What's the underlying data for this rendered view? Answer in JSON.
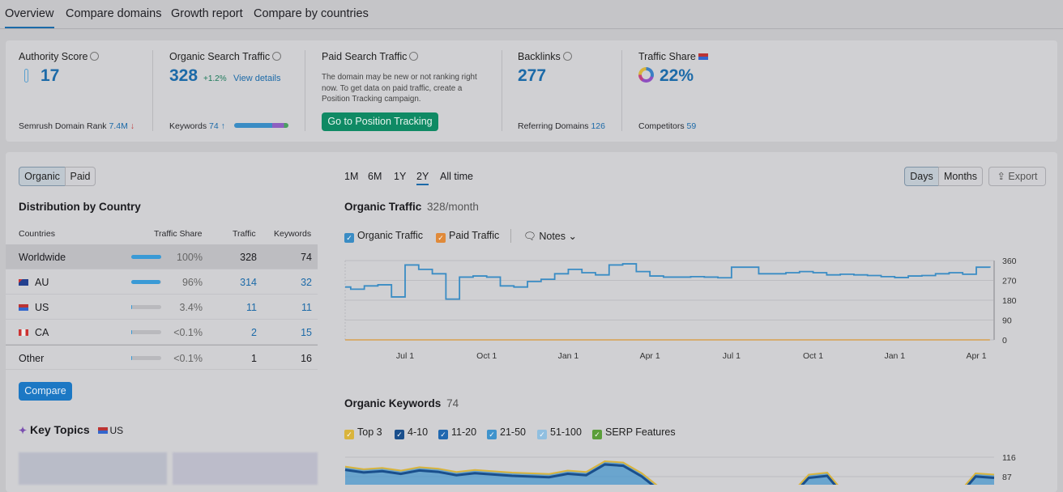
{
  "tabs": [
    {
      "label": "Overview",
      "active": true
    },
    {
      "label": "Compare domains"
    },
    {
      "label": "Growth report"
    },
    {
      "label": "Compare by countries"
    }
  ],
  "metrics": {
    "authority": {
      "label": "Authority Score",
      "value": "17",
      "footer_label": "Semrush Domain Rank",
      "footer_value": "7.4M",
      "trend": "down"
    },
    "organic": {
      "label": "Organic Search Traffic",
      "value": "328",
      "change": "+1.2%",
      "link": "View details",
      "footer_label": "Keywords",
      "footer_value": "74",
      "trend": "up"
    },
    "paid": {
      "label": "Paid Search Traffic",
      "message": "The domain may be new or not ranking right now. To get data on paid traffic, create a Position Tracking campaign.",
      "button": "Go to Position Tracking"
    },
    "backlinks": {
      "label": "Backlinks",
      "value": "277",
      "footer_label": "Referring Domains",
      "footer_value": "126"
    },
    "share": {
      "label": "Traffic Share",
      "value": "22%",
      "footer_label": "Competitors",
      "footer_value": "59"
    }
  },
  "toggle": {
    "organic": "Organic",
    "paid": "Paid"
  },
  "distribution": {
    "title": "Distribution by Country",
    "headers": [
      "Countries",
      "Traffic Share",
      "Traffic",
      "Keywords"
    ],
    "rows": [
      {
        "country": "Worldwide",
        "share": "100%",
        "share_pct": 100,
        "traffic": "328",
        "keywords": "74"
      },
      {
        "country": "AU",
        "share": "96%",
        "share_pct": 96,
        "traffic": "314",
        "keywords": "32",
        "flag": "au"
      },
      {
        "country": "US",
        "share": "3.4%",
        "share_pct": 3.4,
        "traffic": "11",
        "keywords": "11",
        "flag": "us"
      },
      {
        "country": "CA",
        "share": "<0.1%",
        "share_pct": 0.1,
        "traffic": "2",
        "keywords": "15",
        "flag": "ca"
      },
      {
        "country": "Other",
        "share": "<0.1%",
        "share_pct": 0.1,
        "traffic": "1",
        "keywords": "16"
      }
    ],
    "compare": "Compare"
  },
  "key_topics": {
    "title": "Key Topics",
    "country": "US"
  },
  "ranges": [
    "1M",
    "6M",
    "1Y",
    "2Y",
    "All time"
  ],
  "active_range": "2Y",
  "granularity": {
    "days": "Days",
    "months": "Months",
    "export": "Export"
  },
  "traffic_chart": {
    "title": "Organic Traffic",
    "subtitle": "328/month",
    "legend": [
      "Organic Traffic",
      "Paid Traffic"
    ],
    "notes": "Notes"
  },
  "keywords_chart": {
    "title": "Organic Keywords",
    "count": "74",
    "legend": [
      {
        "label": "Top 3",
        "color": "#d9b43c"
      },
      {
        "label": "4-10",
        "color": "#1a4f8c"
      },
      {
        "label": "11-20",
        "color": "#2068b0"
      },
      {
        "label": "21-50",
        "color": "#3f93cc"
      },
      {
        "label": "51-100",
        "color": "#90bfe0"
      },
      {
        "label": "SERP Features",
        "color": "#5a9e3a"
      }
    ]
  },
  "colors": {
    "accent": "#1c6aa8",
    "green": "#0f8a64",
    "organic": "#3a8cc4",
    "paid": "#e08a3a"
  },
  "chart_data": [
    {
      "type": "line",
      "series": [
        {
          "name": "Organic Traffic",
          "values": [
            240,
            230,
            245,
            250,
            195,
            340,
            320,
            300,
            185,
            285,
            290,
            285,
            245,
            240,
            265,
            275,
            300,
            320,
            305,
            295,
            340,
            345,
            310,
            290,
            285,
            285,
            287,
            285,
            282,
            330,
            330,
            300,
            300,
            305,
            310,
            305,
            295,
            298,
            295,
            292,
            287,
            283,
            290,
            292,
            300,
            305,
            298,
            330,
            328
          ]
        },
        {
          "name": "Paid Traffic",
          "values": [
            0,
            0,
            0,
            0,
            0,
            0,
            0,
            0,
            0,
            0,
            0,
            0,
            0,
            0,
            0,
            0,
            0,
            0,
            0,
            0,
            0,
            0,
            0,
            0,
            0,
            0,
            0,
            0,
            0,
            0,
            0,
            0,
            0,
            0,
            0,
            0,
            0,
            0,
            0,
            0,
            0,
            0,
            0,
            0,
            0,
            0,
            0,
            0,
            0
          ]
        }
      ],
      "x_ticks": [
        "Jul 1",
        "Oct 1",
        "Jan 1",
        "Apr 1",
        "Jul 1",
        "Oct 1",
        "Jan 1",
        "Apr 1"
      ],
      "x_tick_index": [
        5,
        11,
        17,
        23,
        29,
        35,
        41,
        47
      ],
      "y_ticks": [
        0,
        90,
        180,
        270,
        360
      ],
      "ylim": [
        0,
        360
      ],
      "grid": true
    },
    {
      "type": "area",
      "series": [
        {
          "name": "Top 3",
          "values": [
            102,
            98,
            100,
            96,
            101,
            99,
            94,
            97,
            95,
            93,
            92,
            91,
            96,
            94,
            110,
            108,
            92,
            70,
            60,
            55,
            60,
            60,
            60,
            60,
            60,
            90,
            93,
            60,
            60,
            60,
            60,
            60,
            60,
            60,
            92,
            90
          ]
        }
      ],
      "y_ticks": [
        87,
        116
      ],
      "grid": true
    }
  ]
}
